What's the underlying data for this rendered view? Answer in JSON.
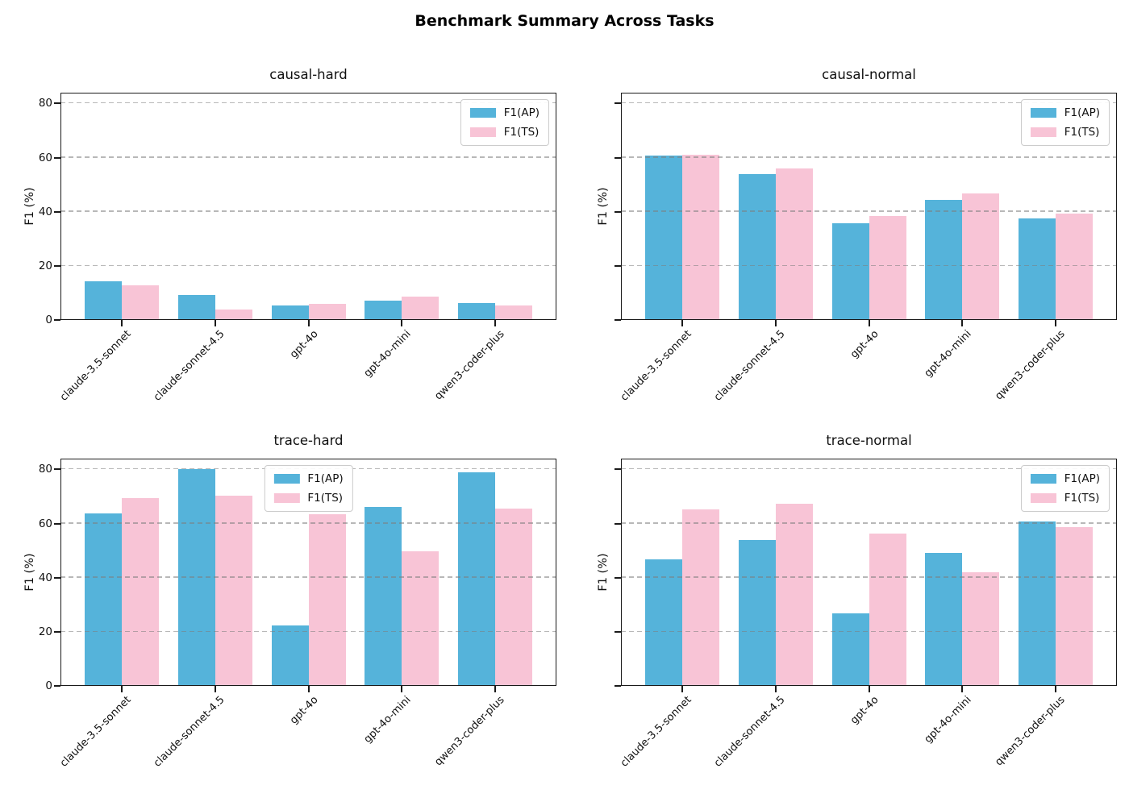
{
  "title": "Benchmark Summary Across Tasks",
  "colors": {
    "f1_ap": "#55b3da",
    "f1_ts": "#f8c4d6",
    "grid": "#7d7d7d",
    "axis": "#1a1a1a"
  },
  "legend_labels": [
    "F1(AP)",
    "F1(TS)"
  ],
  "categories": [
    "claude-3.5-sonnet",
    "claude-sonnet-4.5",
    "gpt-4o",
    "gpt-4o-mini",
    "qwen3-coder-plus"
  ],
  "y_axis": {
    "label": "F1 (%)",
    "ticks": [
      0,
      20,
      40,
      60,
      80
    ],
    "max": 84
  },
  "chart_data": [
    {
      "type": "bar",
      "title": "causal-hard",
      "categories": [
        "claude-3.5-sonnet",
        "claude-sonnet-4.5",
        "gpt-4o",
        "gpt-4o-mini",
        "qwen3-coder-plus"
      ],
      "series": [
        {
          "name": "F1(AP)",
          "values": [
            14.2,
            9.2,
            5.3,
            7.1,
            6.3
          ]
        },
        {
          "name": "F1(TS)",
          "values": [
            12.8,
            3.8,
            6.1,
            8.8,
            5.5
          ]
        }
      ],
      "xlabel": "",
      "ylabel": "F1 (%)",
      "ylim": [
        0,
        84
      ],
      "grid": "horizontal-dashed",
      "y_tick_labels_visible": true,
      "legend_position": "upper-right"
    },
    {
      "type": "bar",
      "title": "causal-normal",
      "categories": [
        "claude-3.5-sonnet",
        "claude-sonnet-4.5",
        "gpt-4o",
        "gpt-4o-mini",
        "qwen3-coder-plus"
      ],
      "series": [
        {
          "name": "F1(AP)",
          "values": [
            60.8,
            54.0,
            35.9,
            44.4,
            37.5
          ]
        },
        {
          "name": "F1(TS)",
          "values": [
            61.1,
            56.1,
            38.4,
            46.8,
            39.2
          ]
        }
      ],
      "xlabel": "",
      "ylabel": "F1 (%)",
      "ylim": [
        0,
        84
      ],
      "grid": "horizontal-dashed",
      "y_tick_labels_visible": false,
      "legend_position": "upper-right"
    },
    {
      "type": "bar",
      "title": "trace-hard",
      "categories": [
        "claude-3.5-sonnet",
        "claude-sonnet-4.5",
        "gpt-4o",
        "gpt-4o-mini",
        "qwen3-coder-plus"
      ],
      "series": [
        {
          "name": "F1(AP)",
          "values": [
            63.9,
            80.0,
            22.5,
            66.1,
            78.9
          ]
        },
        {
          "name": "F1(TS)",
          "values": [
            69.5,
            70.2,
            63.6,
            49.7,
            65.5
          ]
        }
      ],
      "xlabel": "",
      "ylabel": "F1 (%)",
      "ylim": [
        0,
        84
      ],
      "grid": "horizontal-dashed",
      "y_tick_labels_visible": true,
      "legend_position": "upper-center"
    },
    {
      "type": "bar",
      "title": "trace-normal",
      "categories": [
        "claude-3.5-sonnet",
        "claude-sonnet-4.5",
        "gpt-4o",
        "gpt-4o-mini",
        "qwen3-coder-plus"
      ],
      "series": [
        {
          "name": "F1(AP)",
          "values": [
            46.7,
            53.9,
            26.7,
            49.2,
            60.8
          ]
        },
        {
          "name": "F1(TS)",
          "values": [
            65.2,
            67.3,
            56.3,
            42.0,
            58.7
          ]
        }
      ],
      "xlabel": "",
      "ylabel": "F1 (%)",
      "ylim": [
        0,
        84
      ],
      "grid": "horizontal-dashed",
      "y_tick_labels_visible": false,
      "legend_position": "upper-right"
    }
  ]
}
